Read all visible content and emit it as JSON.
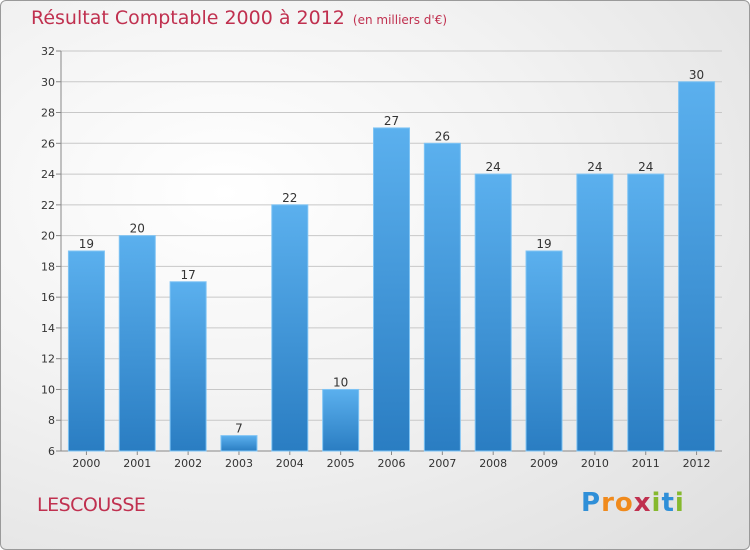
{
  "header": {
    "title": "Résultat Comptable 2000 à 2012",
    "subtitle": "(en milliers d'€)"
  },
  "footer": {
    "city": "LESCOUSSE",
    "brand": "Proxiti",
    "brand_letters": [
      "P",
      "r",
      "o",
      "x",
      "i",
      "t",
      "i"
    ],
    "brand_colors": [
      "#2f8fd8",
      "#f08a1c",
      "#f08a1c",
      "#c0304f",
      "#86b92e",
      "#2f8fd8",
      "#86b92e"
    ]
  },
  "colors": {
    "bar_light": "#5bb0ee",
    "bar_dark": "#2a7dc2",
    "title": "#c0304f",
    "grid": "#c8c8c8"
  },
  "chart_data": {
    "type": "bar",
    "title": "Résultat Comptable 2000 à 2012",
    "subtitle": "(en milliers d'€)",
    "categories": [
      "2000",
      "2001",
      "2002",
      "2003",
      "2004",
      "2005",
      "2006",
      "2007",
      "2008",
      "2009",
      "2010",
      "2011",
      "2012"
    ],
    "values": [
      19,
      20,
      17,
      7,
      22,
      10,
      27,
      26,
      24,
      19,
      24,
      24,
      30
    ],
    "xlabel": "",
    "ylabel": "",
    "ylim": [
      6,
      32
    ],
    "yticks": [
      6,
      8,
      10,
      12,
      14,
      16,
      18,
      20,
      22,
      24,
      26,
      28,
      30,
      32
    ],
    "grid": true
  }
}
